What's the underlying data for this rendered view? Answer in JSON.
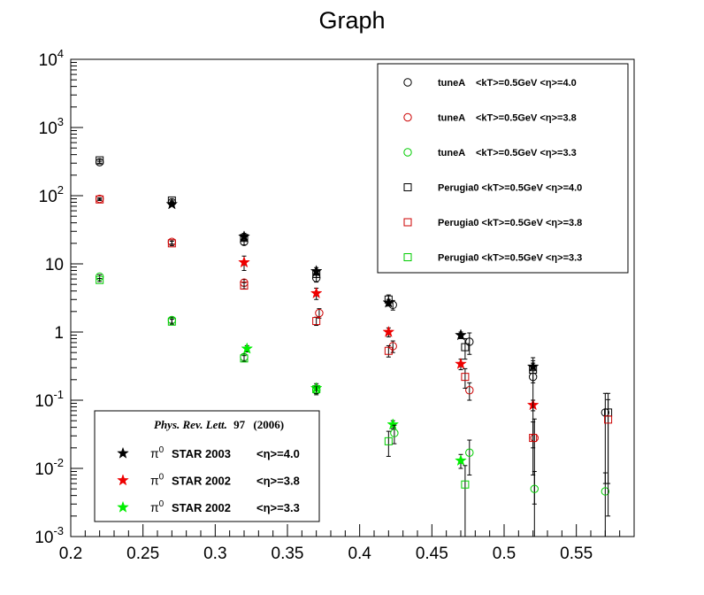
{
  "chart_data": {
    "type": "scatter",
    "title": "Graph",
    "xlabel": "",
    "ylabel": "",
    "xlim": [
      0.2,
      0.59
    ],
    "ylim": [
      0.001,
      10000
    ],
    "yscale": "log",
    "grid": false,
    "x_ticks": [
      "0.2",
      "0.25",
      "0.3",
      "0.35",
      "0.4",
      "0.45",
      "0.5",
      "0.55"
    ],
    "y_ticks": [
      {
        "base": "10",
        "exp": "-3",
        "value": 0.001
      },
      {
        "base": "10",
        "exp": "-2",
        "value": 0.01
      },
      {
        "base": "10",
        "exp": "-1",
        "value": 0.1
      },
      {
        "base": "1",
        "exp": "",
        "value": 1
      },
      {
        "base": "10",
        "exp": "",
        "value": 10
      },
      {
        "base": "10",
        "exp": "2",
        "value": 100
      },
      {
        "base": "10",
        "exp": "3",
        "value": 1000
      },
      {
        "base": "10",
        "exp": "4",
        "value": 10000
      }
    ],
    "legend_top": {
      "placement": "top-right",
      "entries": [
        {
          "marker": "circle",
          "color": "#000000",
          "label_prefix": "tuneA    <kT>=0.5GeV <",
          "label_suffix": ">=4.0"
        },
        {
          "marker": "circle",
          "color": "#cc0000",
          "label_prefix": "tuneA    <kT>=0.5GeV <",
          "label_suffix": ">=3.8"
        },
        {
          "marker": "circle",
          "color": "#00cc00",
          "label_prefix": "tuneA    <kT>=0.5GeV <",
          "label_suffix": ">=3.3"
        },
        {
          "marker": "square",
          "color": "#000000",
          "label_prefix": "Perugia0 <kT>=0.5GeV <",
          "label_suffix": ">=4.0"
        },
        {
          "marker": "square",
          "color": "#cc0000",
          "label_prefix": "Perugia0 <kT>=0.5GeV <",
          "label_suffix": ">=3.8"
        },
        {
          "marker": "square",
          "color": "#00cc00",
          "label_prefix": "Perugia0 <kT>=0.5GeV <",
          "label_suffix": ">=3.3"
        }
      ]
    },
    "legend_bottom": {
      "placement": "bottom-left",
      "header": "Phys. Rev. Lett.",
      "header_bold": "97",
      "header_year": "(2006)",
      "entries": [
        {
          "marker": "star",
          "color": "#000000",
          "label": "STAR 2003",
          "eta": ">=4.0"
        },
        {
          "marker": "star",
          "color": "#ee0000",
          "label": "STAR 2002",
          "eta": ">=3.8"
        },
        {
          "marker": "star",
          "color": "#00ee00",
          "label": "STAR 2002",
          "eta": ">=3.3"
        }
      ]
    },
    "series": [
      {
        "marker": "star",
        "color": "#000000",
        "x": [
          0.27,
          0.32,
          0.37,
          0.42,
          0.47,
          0.52
        ],
        "y": [
          75,
          25,
          7.8,
          2.7,
          0.9,
          0.31
        ],
        "yerr": [
          5,
          3,
          1.0,
          0.3,
          0.1,
          0.04
        ]
      },
      {
        "marker": "star",
        "color": "#ee0000",
        "x": [
          0.32,
          0.37,
          0.42,
          0.47,
          0.52
        ],
        "y": [
          10.5,
          3.7,
          1.0,
          0.34,
          0.085
        ],
        "yerr": [
          2.5,
          0.7,
          0.15,
          0.06,
          0.015
        ]
      },
      {
        "marker": "star",
        "color": "#00ee00",
        "x": [
          0.322,
          0.37,
          0.423,
          0.47
        ],
        "y": [
          0.57,
          0.15,
          0.044,
          0.013
        ],
        "yerr": [
          0.06,
          0.025,
          0.006,
          0.003
        ]
      },
      {
        "marker": "circle",
        "color": "#000000",
        "x": [
          0.22,
          0.27,
          0.32,
          0.37,
          0.423,
          0.476,
          0.52,
          0.57
        ],
        "y": [
          310,
          80,
          21,
          6.2,
          2.5,
          0.72,
          0.22,
          0.066
        ],
        "yerr": [
          10,
          4,
          2,
          0.8,
          0.4,
          0.25,
          0.2,
          0.06
        ]
      },
      {
        "marker": "circle",
        "color": "#cc0000",
        "x": [
          0.22,
          0.27,
          0.32,
          0.372,
          0.423,
          0.476,
          0.521
        ],
        "y": [
          90,
          21,
          5.3,
          1.9,
          0.62,
          0.14,
          0.028
        ],
        "yerr": [
          3,
          1.5,
          0.6,
          0.3,
          0.12,
          0.04,
          0.025
        ]
      },
      {
        "marker": "circle",
        "color": "#00cc00",
        "x": [
          0.22,
          0.27,
          0.32,
          0.37,
          0.424,
          0.476,
          0.521,
          0.57
        ],
        "y": [
          6.5,
          1.5,
          0.43,
          0.14,
          0.033,
          0.017,
          0.005,
          0.0046
        ],
        "yerr": [
          0.4,
          0.15,
          0.05,
          0.02,
          0.01,
          0.009,
          0.004,
          0.004
        ]
      },
      {
        "marker": "square",
        "color": "#000000",
        "x": [
          0.22,
          0.27,
          0.32,
          0.37,
          0.42,
          0.473,
          0.52,
          0.572
        ],
        "y": [
          330,
          85,
          24,
          7.1,
          3.0,
          0.6,
          0.28,
          0.066
        ],
        "yerr": [
          10,
          4,
          2,
          0.8,
          0.5,
          0.2,
          0.1,
          0.06
        ]
      },
      {
        "marker": "square",
        "color": "#cc0000",
        "x": [
          0.22,
          0.27,
          0.32,
          0.37,
          0.42,
          0.473,
          0.52,
          0.572
        ],
        "y": [
          88,
          20,
          4.8,
          1.45,
          0.53,
          0.22,
          0.028,
          0.052
        ],
        "yerr": [
          3,
          1.5,
          0.5,
          0.2,
          0.1,
          0.07,
          0.02,
          0.05
        ]
      },
      {
        "marker": "square",
        "color": "#00cc00",
        "x": [
          0.22,
          0.27,
          0.32,
          0.37,
          0.42,
          0.473
        ],
        "y": [
          5.8,
          1.42,
          0.41,
          0.145,
          0.025,
          0.0058
        ],
        "yerr": [
          0.3,
          0.12,
          0.04,
          0.02,
          0.01,
          0.0052
        ]
      }
    ]
  }
}
